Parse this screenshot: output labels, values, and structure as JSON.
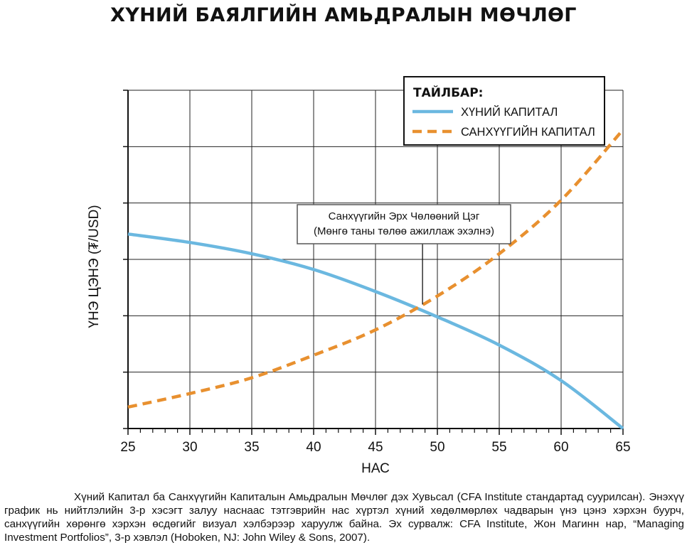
{
  "title": "ХҮНИЙ БАЯЛГИЙН АМЬДРАЛЫН МӨЧЛӨГ",
  "caption": "Хүний Капитал ба Санхүүгийн Капиталын Амьдралын Мөчлөг дэх Хувьсал (CFA Institute стандартад суурилсан). Энэхүү график нь нийтлэлийн 3-р хэсэгт залуу наснаас тэтгэврийн нас хүртэл хүний хөдөлмөрлөх чадварын үнэ цэнэ хэрхэн буурч, санхүүгийн хөрөнгө хэрхэн өсдөгийг визуал хэлбэрээр харуулж байна. Эх сурвалж: CFA Institute, Жон Магинн нар, “Managing Investment Portfolios”, 3-р хэвлэл (Hoboken, NJ: John Wiley & Sons, 2007).",
  "chart_data": {
    "type": "line",
    "title": "ХҮНИЙ БАЯЛГИЙН АМЬДРАЛЫН МӨЧЛӨГ",
    "xlabel": "НАС",
    "ylabel": "ҮНЭ ЦЭНЭ (₮/USD)",
    "xlim": [
      25,
      65
    ],
    "ylim": [
      0,
      6
    ],
    "x_ticks": [
      25,
      30,
      35,
      40,
      45,
      50,
      55,
      60,
      65
    ],
    "x_tick_labels": [
      "25",
      "30",
      "35",
      "40",
      "45",
      "50",
      "55",
      "60",
      "65"
    ],
    "y_tick_labels_shown": false,
    "grid": true,
    "legend": {
      "title": "ТАЙЛБАР:",
      "position": "top-right"
    },
    "series": [
      {
        "name": "ХҮНИЙ КАПИТАЛ",
        "color": "#6bb8e0",
        "style": "solid",
        "x": [
          25,
          30,
          35,
          40,
          45,
          50,
          55,
          60,
          65
        ],
        "y": [
          3.45,
          3.3,
          3.1,
          2.82,
          2.43,
          1.98,
          1.48,
          0.85,
          0.0
        ]
      },
      {
        "name": "САНХҮҮГИЙН КАПИТАЛ",
        "color": "#e8902f",
        "style": "dashed",
        "x": [
          25,
          30,
          35,
          40,
          45,
          50,
          55,
          60,
          65
        ],
        "y": [
          0.38,
          0.62,
          0.9,
          1.3,
          1.75,
          2.35,
          3.1,
          4.05,
          5.3
        ]
      }
    ],
    "annotations": [
      {
        "text_lines": [
          "Санхүүгийн Эрх Чөлөөний Цэг",
          "(Мөнгө таны төлөө ажиллаж эхэлнэ)"
        ],
        "x": 48.8,
        "y": 2.2
      }
    ]
  }
}
